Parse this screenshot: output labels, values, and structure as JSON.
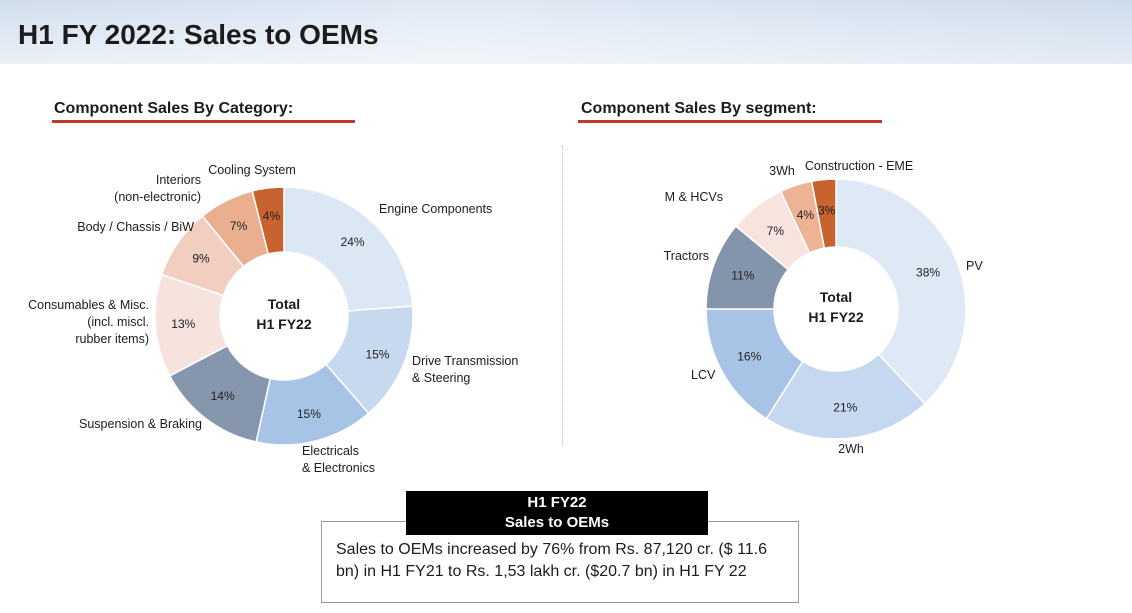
{
  "header": {
    "title": "H1 FY 2022: Sales to OEMs"
  },
  "section_left": {
    "title": "Component Sales By Category:"
  },
  "section_right": {
    "title": "Component Sales By segment:"
  },
  "summary": {
    "header_line1": "H1 FY22",
    "header_line2": "Sales to OEMs",
    "text": "Sales to OEMs increased  by 76% from Rs. 87,120 cr. ($ 11.6 bn) in H1 FY21 to Rs. 1,53 lakh cr. ($20.7 bn) in H1 FY 22"
  },
  "chart_data": [
    {
      "type": "pie",
      "variant": "donut",
      "title": "Component Sales By Category:",
      "center_label": [
        "Total",
        "H1 FY22"
      ],
      "slices": [
        {
          "label": [
            "Engine Components"
          ],
          "value": 24,
          "value_label": "24%",
          "color": "#dce7f4"
        },
        {
          "label": [
            "Drive Transmission",
            "& Steering"
          ],
          "value": 15,
          "value_label": "15%",
          "color": "#c7d9ee"
        },
        {
          "label": [
            "Electricals",
            "& Electronics"
          ],
          "value": 15,
          "value_label": "15%",
          "color": "#a7c4e6"
        },
        {
          "label": [
            "Suspension & Braking"
          ],
          "value": 14,
          "value_label": "14%",
          "color": "#8696ad"
        },
        {
          "label": [
            "Consumables & Misc.",
            "(incl. miscl.",
            "rubber items)"
          ],
          "value": 13,
          "value_label": "13%",
          "color": "#f7e3de"
        },
        {
          "label": [
            "Body / Chassis / BiW"
          ],
          "value": 9,
          "value_label": "9%",
          "color": "#f1cebf"
        },
        {
          "label": [
            "Interiors",
            "(non-electronic)"
          ],
          "value": 7,
          "value_label": "7%",
          "color": "#e9af8f"
        },
        {
          "label": [
            "Cooling System"
          ],
          "value": 4,
          "value_label": "4%",
          "color": "#c8622e"
        }
      ]
    },
    {
      "type": "pie",
      "variant": "donut",
      "title": "Component Sales By segment:",
      "center_label": [
        "Total",
        "H1 FY22"
      ],
      "slices": [
        {
          "label": [
            "PV"
          ],
          "value": 38,
          "value_label": "38%",
          "color": "#dfe9f5"
        },
        {
          "label": [
            "2Wh"
          ],
          "value": 21,
          "value_label": "21%",
          "color": "#c5d8ef"
        },
        {
          "label": [
            "LCV"
          ],
          "value": 16,
          "value_label": "16%",
          "color": "#a7c4e6"
        },
        {
          "label": [
            "Tractors"
          ],
          "value": 11,
          "value_label": "11%",
          "color": "#8494ab"
        },
        {
          "label": [
            "M & HCVs"
          ],
          "value": 7,
          "value_label": "7%",
          "color": "#f8e4df"
        },
        {
          "label": [
            "3Wh"
          ],
          "value": 4,
          "value_label": "4%",
          "color": "#eeb395"
        },
        {
          "label": [
            "Construction - EME"
          ],
          "value": 3,
          "value_label": "3%",
          "color": "#c8622e"
        }
      ]
    }
  ]
}
